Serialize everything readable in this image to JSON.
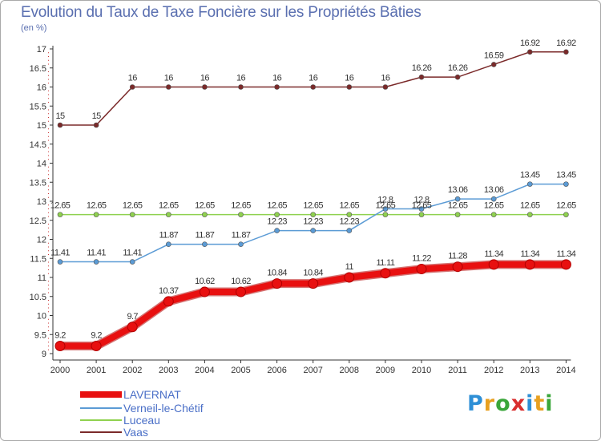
{
  "title": "Evolution du Taux de Taxe Foncière sur les Propriétés Bâties",
  "unit_label": "(en %)",
  "brand": {
    "letters": [
      "P",
      "r",
      "o",
      "x",
      "i",
      "t",
      "i"
    ],
    "colors": [
      "#2e8fd6",
      "#e8a020",
      "#3aa63a",
      "#d92e2e",
      "#2e8fd6",
      "#e8a020",
      "#3aa63a"
    ]
  },
  "chart_data": {
    "type": "line",
    "title": "Evolution du Taux de Taxe Foncière sur les Propriétés Bâties",
    "ylabel": "(en %)",
    "xlabel": "",
    "x": [
      "2000",
      "2001",
      "2002",
      "2003",
      "2004",
      "2005",
      "2006",
      "2007",
      "2008",
      "2009",
      "2010",
      "2011",
      "2012",
      "2013",
      "2014"
    ],
    "ylim": [
      9,
      17
    ],
    "yticks": [
      "9",
      "9.5",
      "10",
      "10.5",
      "11",
      "11.5",
      "12",
      "12.5",
      "13",
      "13.5",
      "14",
      "14.5",
      "15",
      "15.5",
      "16",
      "16.5",
      "17"
    ],
    "grid": false,
    "legend_position": "bottom-left",
    "series": [
      {
        "name": "Vaas",
        "color": "#7b2a2a",
        "values": [
          15,
          15,
          16,
          16,
          16,
          16,
          16,
          16,
          16,
          16,
          16.26,
          16.26,
          16.59,
          16.92,
          16.92
        ],
        "labels": [
          "15",
          "15",
          "16",
          "16",
          "16",
          "16",
          "16",
          "16",
          "16",
          "16",
          "16.26",
          "16.26",
          "16.59",
          "16.92",
          "16.92"
        ]
      },
      {
        "name": "Verneil-le-Chétif",
        "color": "#5b9bd5",
        "values": [
          11.41,
          11.41,
          11.41,
          11.87,
          11.87,
          11.87,
          12.23,
          12.23,
          12.23,
          12.8,
          12.8,
          13.06,
          13.06,
          13.45,
          13.45
        ],
        "labels": [
          "11.41",
          "11.41",
          "11.41",
          "11.87",
          "11.87",
          "11.87",
          "12.23",
          "12.23",
          "12.23",
          "12.8",
          "12.8",
          "13.06",
          "13.06",
          "13.45",
          "13.45"
        ]
      },
      {
        "name": "Luceau",
        "color": "#8fd14f",
        "values": [
          12.65,
          12.65,
          12.65,
          12.65,
          12.65,
          12.65,
          12.65,
          12.65,
          12.65,
          12.65,
          12.65,
          12.65,
          12.65,
          12.65,
          12.65
        ],
        "labels": [
          "12.65",
          "12.65",
          "12.65",
          "12.65",
          "12.65",
          "12.65",
          "12.65",
          "12.65",
          "12.65",
          "12.65",
          "12.65",
          "12.65",
          "12.65",
          "12.65",
          "12.65"
        ]
      },
      {
        "name": "LAVERNAT",
        "color": "#e81010",
        "values": [
          9.2,
          9.2,
          9.7,
          10.37,
          10.62,
          10.62,
          10.84,
          10.84,
          11,
          11.11,
          11.22,
          11.28,
          11.34,
          11.34,
          11.34
        ],
        "labels": [
          "9.2",
          "9.2",
          "9.7",
          "10.37",
          "10.62",
          "10.62",
          "10.84",
          "10.84",
          "11",
          "11.11",
          "11.22",
          "11.28",
          "11.34",
          "11.34",
          "11.34"
        ]
      }
    ],
    "legend": [
      "LAVERNAT",
      "Verneil-le-Chétif",
      "Luceau",
      "Vaas"
    ]
  }
}
